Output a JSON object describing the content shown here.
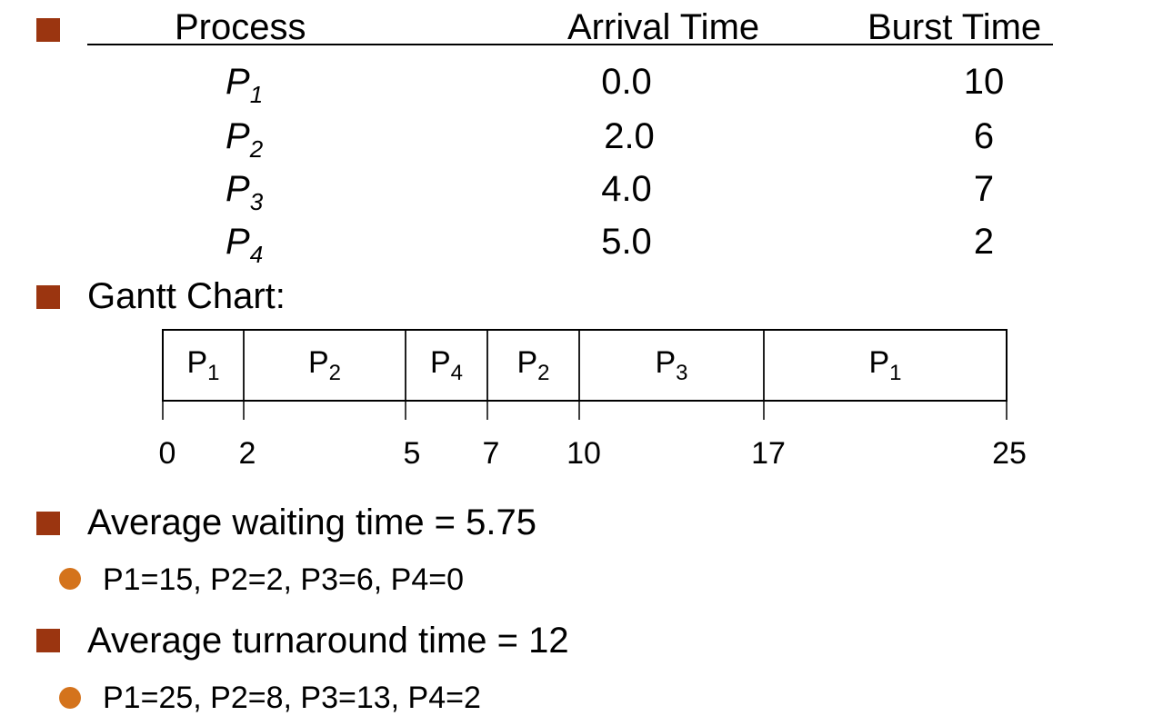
{
  "colors": {
    "square_bullet": "#9b3510",
    "dot_bullet": "#d4731c",
    "text": "#000000",
    "line": "#000000"
  },
  "table": {
    "headers": {
      "process": "Process",
      "arrival": "Arrival Time",
      "burst": "Burst Time"
    },
    "rows": [
      {
        "name": "P",
        "sub": "1",
        "arrival": "0.0",
        "burst": "10"
      },
      {
        "name": "P",
        "sub": "2",
        "arrival": "2.0",
        "burst": "6"
      },
      {
        "name": "P",
        "sub": "3",
        "arrival": "4.0",
        "burst": "7"
      },
      {
        "name": "P",
        "sub": "4",
        "arrival": "5.0",
        "burst": "2"
      }
    ]
  },
  "gantt_label": "Gantt Chart:",
  "chart_data": {
    "type": "gantt",
    "segments": [
      {
        "process": "P",
        "sub": "1",
        "start": 0,
        "end": 2
      },
      {
        "process": "P",
        "sub": "2",
        "start": 2,
        "end": 5
      },
      {
        "process": "P",
        "sub": "4",
        "start": 5,
        "end": 7
      },
      {
        "process": "P",
        "sub": "2",
        "start": 7,
        "end": 10
      },
      {
        "process": "P",
        "sub": "3",
        "start": 10,
        "end": 17
      },
      {
        "process": "P",
        "sub": "1",
        "start": 17,
        "end": 25
      }
    ],
    "ticks": [
      "0",
      "2",
      "5",
      "7",
      "10",
      "17",
      "25"
    ],
    "range": [
      0,
      25
    ]
  },
  "avg_waiting": {
    "title": "Average waiting time = 5.75",
    "detail": "P1=15, P2=2, P3=6, P4=0"
  },
  "avg_turnaround": {
    "title": "Average turnaround time = 12",
    "detail": "P1=25, P2=8, P3=13, P4=2"
  }
}
